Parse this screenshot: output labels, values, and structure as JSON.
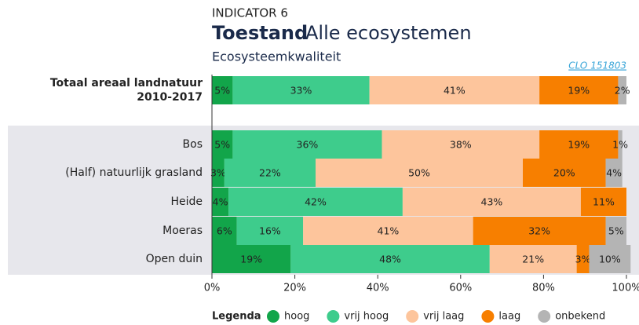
{
  "chart_data": {
    "type": "stacked-bar-horizontal",
    "indicator": "INDICATOR 6",
    "title": [
      "Toestand",
      "Alle ecosystemen"
    ],
    "subtitle": "Ecosysteemkwaliteit",
    "link": "CLO 151803",
    "legend_title": "Legenda",
    "categories": [
      [
        "Totaal areaal landnatuur",
        "2010-2017"
      ],
      "Bos",
      "(Half) natuurlijk grasland",
      "Heide",
      "Moeras",
      "Open duin"
    ],
    "series": [
      {
        "name": "hoog",
        "color": "#12a54a",
        "values": [
          5,
          5,
          3,
          4,
          6,
          19
        ],
        "value_labels": [
          "5%",
          "5%",
          "3%",
          "4%",
          "6%",
          "19%"
        ]
      },
      {
        "name": "vrij hoog",
        "color": "#3ecc8c",
        "values": [
          33,
          36,
          22,
          42,
          16,
          48
        ],
        "value_labels": [
          "33%",
          "36%",
          "22%",
          "42%",
          "16%",
          "48%"
        ]
      },
      {
        "name": "vrij laag",
        "color": "#fdc59c",
        "values": [
          41,
          38,
          50,
          43,
          41,
          21
        ],
        "value_labels": [
          "41%",
          "38%",
          "50%",
          "43%",
          "41%",
          "21%"
        ]
      },
      {
        "name": "laag",
        "color": "#f77f00",
        "values": [
          19,
          19,
          20,
          11,
          32,
          3
        ],
        "value_labels": [
          "19%",
          "19%",
          "20%",
          "11%",
          "32%",
          "3%"
        ]
      },
      {
        "name": "onbekend",
        "color": "#b4b4b4",
        "values": [
          2,
          1,
          4,
          0,
          5,
          10
        ],
        "value_labels": [
          "2%",
          "1%",
          "4%",
          null,
          "5%",
          "10%"
        ]
      }
    ],
    "xlim": [
      0,
      100
    ],
    "xticks": [
      {
        "value": 0,
        "label": "0%"
      },
      {
        "value": 20,
        "label": "20%"
      },
      {
        "value": 40,
        "label": "40%"
      },
      {
        "value": 60,
        "label": "60%"
      },
      {
        "value": 80,
        "label": "80%"
      },
      {
        "value": 100,
        "label": "100%"
      }
    ]
  }
}
